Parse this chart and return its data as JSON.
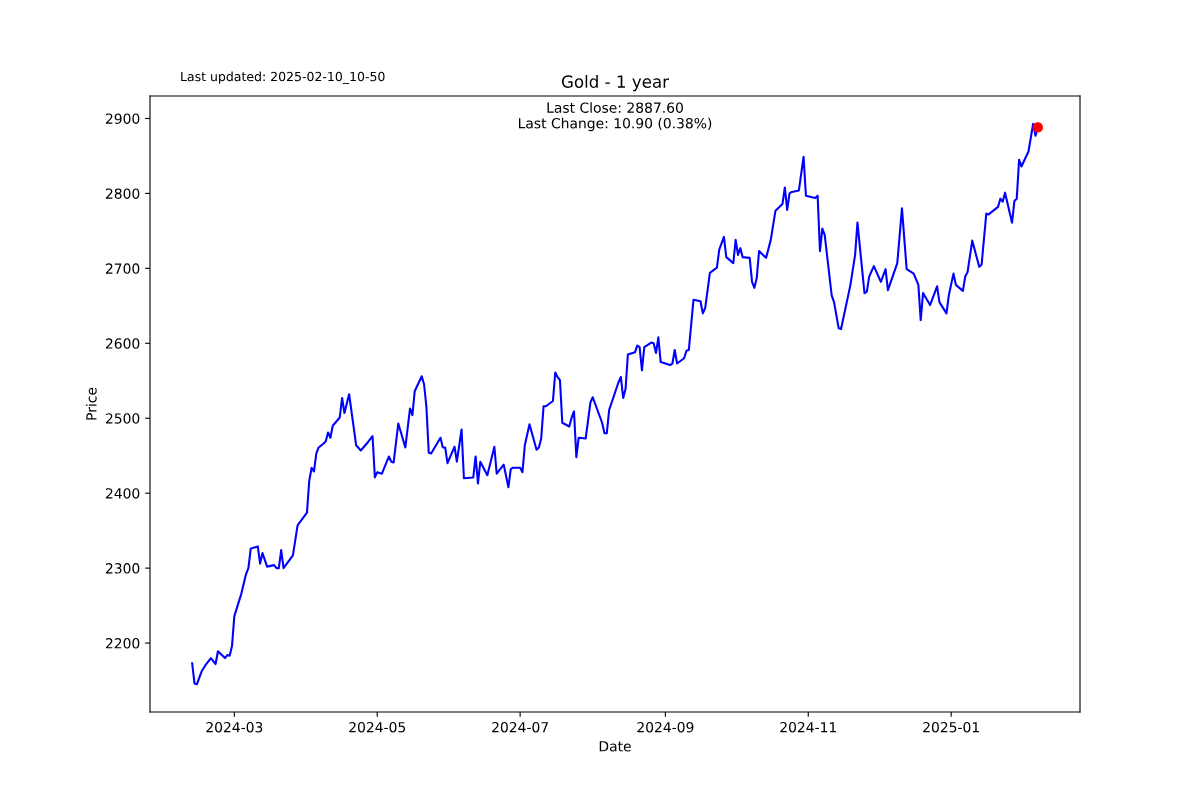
{
  "chart_data": {
    "type": "line",
    "title": "Gold - 1 year",
    "xlabel": "Date",
    "ylabel": "Price",
    "annotations": [
      "Last updated: 2025-02-10_10-50",
      "Last Close: 2887.60",
      "Last Change: 10.90 (0.38%)"
    ],
    "xlim": [
      "2024-01-25",
      "2025-02-25"
    ],
    "xticks": [
      {
        "value": "2024-03-01",
        "label": "2024-03"
      },
      {
        "value": "2024-05-01",
        "label": "2024-05"
      },
      {
        "value": "2024-07-01",
        "label": "2024-07"
      },
      {
        "value": "2024-09-01",
        "label": "2024-09"
      },
      {
        "value": "2024-11-01",
        "label": "2024-11"
      },
      {
        "value": "2025-01-01",
        "label": "2025-01"
      }
    ],
    "ylim": [
      2108,
      2930
    ],
    "yticks": [
      2200,
      2300,
      2400,
      2500,
      2600,
      2700,
      2800,
      2900
    ],
    "grid": false,
    "series": [
      {
        "color": "#0000ff",
        "marker": "none",
        "line_style": "solid",
        "x": [
          "2024-02-12",
          "2024-02-13",
          "2024-02-14",
          "2024-02-16",
          "2024-02-18",
          "2024-02-20",
          "2024-02-22",
          "2024-02-23",
          "2024-02-26",
          "2024-02-27",
          "2024-02-28",
          "2024-02-29",
          "2024-03-01",
          "2024-03-04",
          "2024-03-06",
          "2024-03-07",
          "2024-03-08",
          "2024-03-11",
          "2024-03-12",
          "2024-03-13",
          "2024-03-15",
          "2024-03-18",
          "2024-03-19",
          "2024-03-20",
          "2024-03-21",
          "2024-03-22",
          "2024-03-26",
          "2024-03-28",
          "2024-04-01",
          "2024-04-02",
          "2024-04-03",
          "2024-04-04",
          "2024-04-05",
          "2024-04-06",
          "2024-04-08",
          "2024-04-09",
          "2024-04-10",
          "2024-04-11",
          "2024-04-12",
          "2024-04-15",
          "2024-04-16",
          "2024-04-17",
          "2024-04-19",
          "2024-04-22",
          "2024-04-24",
          "2024-04-27",
          "2024-04-29",
          "2024-04-30",
          "2024-05-01",
          "2024-05-03",
          "2024-05-06",
          "2024-05-07",
          "2024-05-08",
          "2024-05-10",
          "2024-05-13",
          "2024-05-15",
          "2024-05-16",
          "2024-05-17",
          "2024-05-20",
          "2024-05-21",
          "2024-05-22",
          "2024-05-23",
          "2024-05-24",
          "2024-05-28",
          "2024-05-29",
          "2024-05-30",
          "2024-05-31",
          "2024-06-03",
          "2024-06-04",
          "2024-06-06",
          "2024-06-07",
          "2024-06-11",
          "2024-06-12",
          "2024-06-13",
          "2024-06-14",
          "2024-06-17",
          "2024-06-20",
          "2024-06-21",
          "2024-06-24",
          "2024-06-26",
          "2024-06-27",
          "2024-06-28",
          "2024-07-01",
          "2024-07-02",
          "2024-07-03",
          "2024-07-05",
          "2024-07-08",
          "2024-07-09",
          "2024-07-10",
          "2024-07-11",
          "2024-07-12",
          "2024-07-15",
          "2024-07-16",
          "2024-07-17",
          "2024-07-18",
          "2024-07-19",
          "2024-07-22",
          "2024-07-23",
          "2024-07-24",
          "2024-07-25",
          "2024-07-26",
          "2024-07-29",
          "2024-07-31",
          "2024-08-01",
          "2024-08-05",
          "2024-08-06",
          "2024-08-07",
          "2024-08-08",
          "2024-08-12",
          "2024-08-13",
          "2024-08-14",
          "2024-08-15",
          "2024-08-16",
          "2024-08-19",
          "2024-08-20",
          "2024-08-21",
          "2024-08-22",
          "2024-08-23",
          "2024-08-26",
          "2024-08-27",
          "2024-08-28",
          "2024-08-29",
          "2024-08-30",
          "2024-09-03",
          "2024-09-04",
          "2024-09-05",
          "2024-09-06",
          "2024-09-09",
          "2024-09-10",
          "2024-09-11",
          "2024-09-13",
          "2024-09-16",
          "2024-09-17",
          "2024-09-18",
          "2024-09-20",
          "2024-09-23",
          "2024-09-24",
          "2024-09-26",
          "2024-09-27",
          "2024-09-30",
          "2024-10-01",
          "2024-10-02",
          "2024-10-03",
          "2024-10-04",
          "2024-10-07",
          "2024-10-08",
          "2024-10-09",
          "2024-10-10",
          "2024-10-11",
          "2024-10-14",
          "2024-10-16",
          "2024-10-18",
          "2024-10-21",
          "2024-10-22",
          "2024-10-23",
          "2024-10-24",
          "2024-10-25",
          "2024-10-28",
          "2024-10-30",
          "2024-10-31",
          "2024-11-04",
          "2024-11-05",
          "2024-11-06",
          "2024-11-07",
          "2024-11-08",
          "2024-11-11",
          "2024-11-12",
          "2024-11-14",
          "2024-11-15",
          "2024-11-19",
          "2024-11-21",
          "2024-11-22",
          "2024-11-25",
          "2024-11-26",
          "2024-11-27",
          "2024-11-29",
          "2024-12-02",
          "2024-12-04",
          "2024-12-05",
          "2024-12-09",
          "2024-12-11",
          "2024-12-13",
          "2024-12-16",
          "2024-12-18",
          "2024-12-19",
          "2024-12-20",
          "2024-12-23",
          "2024-12-26",
          "2024-12-27",
          "2024-12-30",
          "2024-12-31",
          "2025-01-02",
          "2025-01-03",
          "2025-01-06",
          "2025-01-07",
          "2025-01-08",
          "2025-01-10",
          "2025-01-13",
          "2025-01-14",
          "2025-01-16",
          "2025-01-17",
          "2025-01-21",
          "2025-01-22",
          "2025-01-23",
          "2025-01-24",
          "2025-01-27",
          "2025-01-28",
          "2025-01-29",
          "2025-01-30",
          "2025-01-31",
          "2025-02-03",
          "2025-02-05",
          "2025-02-06",
          "2025-02-07"
        ],
        "values": [
          2173,
          2146,
          2145,
          2162,
          2172,
          2180,
          2172,
          2189,
          2180,
          2184,
          2183,
          2196,
          2236,
          2266,
          2292,
          2300,
          2326,
          2329,
          2306,
          2320,
          2302,
          2304,
          2300,
          2300,
          2324,
          2300,
          2317,
          2357,
          2374,
          2417,
          2434,
          2429,
          2453,
          2461,
          2466,
          2469,
          2481,
          2474,
          2490,
          2501,
          2527,
          2507,
          2532,
          2464,
          2457,
          2468,
          2476,
          2421,
          2428,
          2426,
          2449,
          2442,
          2441,
          2493,
          2461,
          2513,
          2504,
          2536,
          2556,
          2545,
          2515,
          2454,
          2453,
          2474,
          2461,
          2461,
          2440,
          2462,
          2442,
          2485,
          2420,
          2421,
          2449,
          2413,
          2442,
          2424,
          2462,
          2426,
          2438,
          2408,
          2432,
          2434,
          2434,
          2428,
          2464,
          2492,
          2458,
          2461,
          2473,
          2516,
          2516,
          2523,
          2561,
          2555,
          2551,
          2494,
          2489,
          2501,
          2509,
          2448,
          2474,
          2473,
          2521,
          2528,
          2494,
          2480,
          2480,
          2511,
          2548,
          2555,
          2527,
          2539,
          2585,
          2588,
          2597,
          2595,
          2564,
          2595,
          2601,
          2600,
          2587,
          2608,
          2575,
          2571,
          2573,
          2591,
          2573,
          2580,
          2590,
          2591,
          2658,
          2656,
          2640,
          2647,
          2694,
          2701,
          2725,
          2742,
          2715,
          2707,
          2738,
          2718,
          2727,
          2715,
          2714,
          2682,
          2674,
          2687,
          2723,
          2714,
          2738,
          2777,
          2786,
          2808,
          2778,
          2800,
          2802,
          2804,
          2849,
          2797,
          2794,
          2797,
          2723,
          2753,
          2745,
          2664,
          2655,
          2620,
          2619,
          2678,
          2718,
          2761,
          2667,
          2669,
          2689,
          2703,
          2682,
          2699,
          2671,
          2707,
          2780,
          2699,
          2693,
          2678,
          2631,
          2667,
          2651,
          2676,
          2655,
          2640,
          2664,
          2693,
          2678,
          2670,
          2689,
          2695,
          2737,
          2702,
          2705,
          2773,
          2772,
          2782,
          2793,
          2789,
          2801,
          2761,
          2790,
          2793,
          2845,
          2836,
          2856,
          2893,
          2877,
          2888
        ]
      },
      {
        "type": "scatter",
        "color": "#ff0000",
        "marker": "circle",
        "x": [
          "2025-02-07"
        ],
        "values": [
          2888
        ]
      }
    ]
  }
}
